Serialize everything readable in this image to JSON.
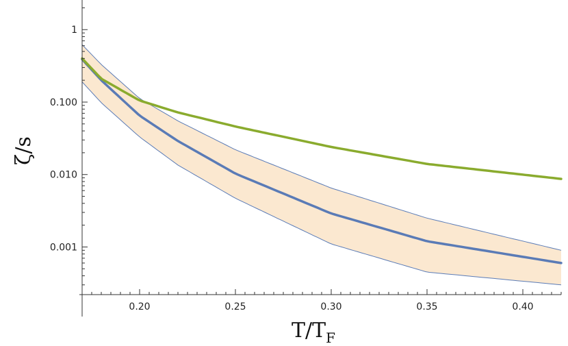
{
  "chart_data": {
    "type": "line",
    "title": "",
    "xlabel": "T/T",
    "xlabel_sub": "F",
    "ylabel": "ζ/s",
    "xlim": [
      0.17,
      0.42
    ],
    "ylim": [
      0.00022,
      2.3
    ],
    "yscale": "log",
    "grid": false,
    "legend": "none",
    "x_ticks": [
      {
        "value": 0.2,
        "label": "0.20"
      },
      {
        "value": 0.25,
        "label": "0.25"
      },
      {
        "value": 0.3,
        "label": "0.30"
      },
      {
        "value": 0.35,
        "label": "0.35"
      },
      {
        "value": 0.4,
        "label": "0.40"
      }
    ],
    "y_ticks": [
      {
        "value": 1,
        "label": "1"
      },
      {
        "value": 0.1,
        "label": "0.100"
      },
      {
        "value": 0.01,
        "label": "0.010"
      },
      {
        "value": 0.001,
        "label": "0.001"
      }
    ],
    "colors": {
      "blue": "#5a7bb6",
      "green": "#8aab2e",
      "band_fill": "#fbe8d0",
      "axis": "#333333"
    },
    "band": {
      "x": [
        0.17,
        0.18,
        0.2,
        0.22,
        0.25,
        0.3,
        0.35,
        0.42
      ],
      "upper": [
        0.62,
        0.33,
        0.112,
        0.055,
        0.022,
        0.0065,
        0.0025,
        0.0009
      ],
      "lower": [
        0.19,
        0.098,
        0.033,
        0.0135,
        0.0047,
        0.0011,
        0.00045,
        0.0003
      ]
    },
    "series": [
      {
        "color": "blue",
        "x": [
          0.17,
          0.18,
          0.2,
          0.22,
          0.25,
          0.3,
          0.35,
          0.42
        ],
        "values": [
          0.39,
          0.2,
          0.065,
          0.029,
          0.0103,
          0.0029,
          0.0012,
          0.0006
        ]
      },
      {
        "color": "green",
        "x": [
          0.17,
          0.18,
          0.2,
          0.22,
          0.25,
          0.3,
          0.35,
          0.42
        ],
        "values": [
          0.4,
          0.21,
          0.105,
          0.072,
          0.046,
          0.024,
          0.014,
          0.0087
        ]
      }
    ]
  }
}
